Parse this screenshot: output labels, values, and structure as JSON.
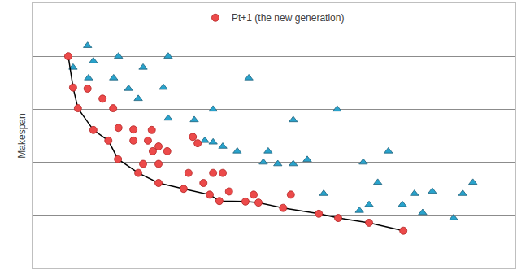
{
  "chart_data": {
    "type": "scatter",
    "y_label": "Makespan",
    "xlim": [
      0,
      10
    ],
    "ylim": [
      0,
      5
    ],
    "yticks": [
      0,
      1,
      2,
      3,
      4,
      5
    ],
    "grid": true,
    "tick_labels": false,
    "legend": "top",
    "series": [
      {
        "color": "#29a3cc",
        "marker": "triangle",
        "x": [
          1.14,
          1.78,
          2.81,
          0.84,
          1.26,
          1.16,
          1.68,
          1.99,
          2.29,
          2.71,
          2.19,
          4.48,
          2.81,
          3.35,
          3.74,
          3.57,
          3.74,
          3.94,
          4.24,
          4.88,
          4.78,
          5.08,
          5.4,
          5.4,
          5.69,
          6.31,
          6.85,
          7.37,
          6.03,
          7.15,
          6.77,
          6.97,
          7.66,
          7.91,
          8.08,
          8.28,
          8.72,
          8.91,
          9.12
        ],
        "values": [
          4.2,
          4.0,
          4.0,
          3.79,
          3.91,
          3.59,
          3.59,
          3.39,
          3.79,
          3.41,
          3.2,
          3.59,
          2.83,
          2.8,
          3.0,
          2.41,
          2.38,
          2.3,
          2.21,
          2.21,
          2.0,
          1.97,
          1.97,
          2.8,
          2.05,
          3.0,
          2.0,
          2.21,
          1.41,
          1.62,
          1.09,
          1.2,
          1.2,
          1.41,
          1.05,
          1.45,
          0.95,
          1.41,
          1.62
        ]
      },
      {
        "type": "line",
        "color": "#000000",
        "marker": "none",
        "line_style": "solid",
        "x": [
          0.74,
          0.84,
          0.94,
          1.26,
          1.57,
          1.77,
          2.19,
          2.61,
          3.13,
          3.67,
          3.87,
          4.41,
          4.68,
          5.19,
          5.93,
          6.33,
          6.97,
          7.68
        ],
        "values": [
          4.0,
          3.41,
          3.02,
          2.61,
          2.41,
          2.06,
          1.8,
          1.61,
          1.5,
          1.39,
          1.27,
          1.26,
          1.24,
          1.14,
          1.03,
          0.95,
          0.86,
          0.71
        ]
      },
      {
        "name": "Pt+1 (the new generation)",
        "color": "#ec4a4a",
        "marker": "circle",
        "x": [
          0.74,
          0.84,
          0.94,
          1.26,
          1.57,
          1.77,
          2.19,
          2.61,
          3.13,
          3.67,
          3.87,
          4.41,
          4.68,
          5.19,
          5.93,
          6.33,
          6.97,
          7.68,
          1.14,
          1.45,
          1.67,
          1.78,
          2.09,
          2.47,
          2.09,
          2.39,
          2.61,
          2.49,
          2.79,
          2.29,
          2.61,
          3.32,
          3.42,
          3.23,
          3.54,
          3.74,
          3.94,
          4.07,
          4.58,
          5.35
        ],
        "values": [
          4.0,
          3.41,
          3.02,
          2.61,
          2.41,
          2.06,
          1.8,
          1.61,
          1.5,
          1.39,
          1.27,
          1.26,
          1.24,
          1.14,
          1.03,
          0.95,
          0.86,
          0.71,
          3.39,
          3.2,
          3.02,
          2.65,
          2.62,
          2.61,
          2.41,
          2.41,
          2.3,
          2.21,
          2.21,
          1.97,
          1.97,
          2.48,
          2.36,
          1.8,
          1.61,
          1.8,
          1.8,
          1.45,
          1.39,
          1.39
        ]
      }
    ]
  }
}
